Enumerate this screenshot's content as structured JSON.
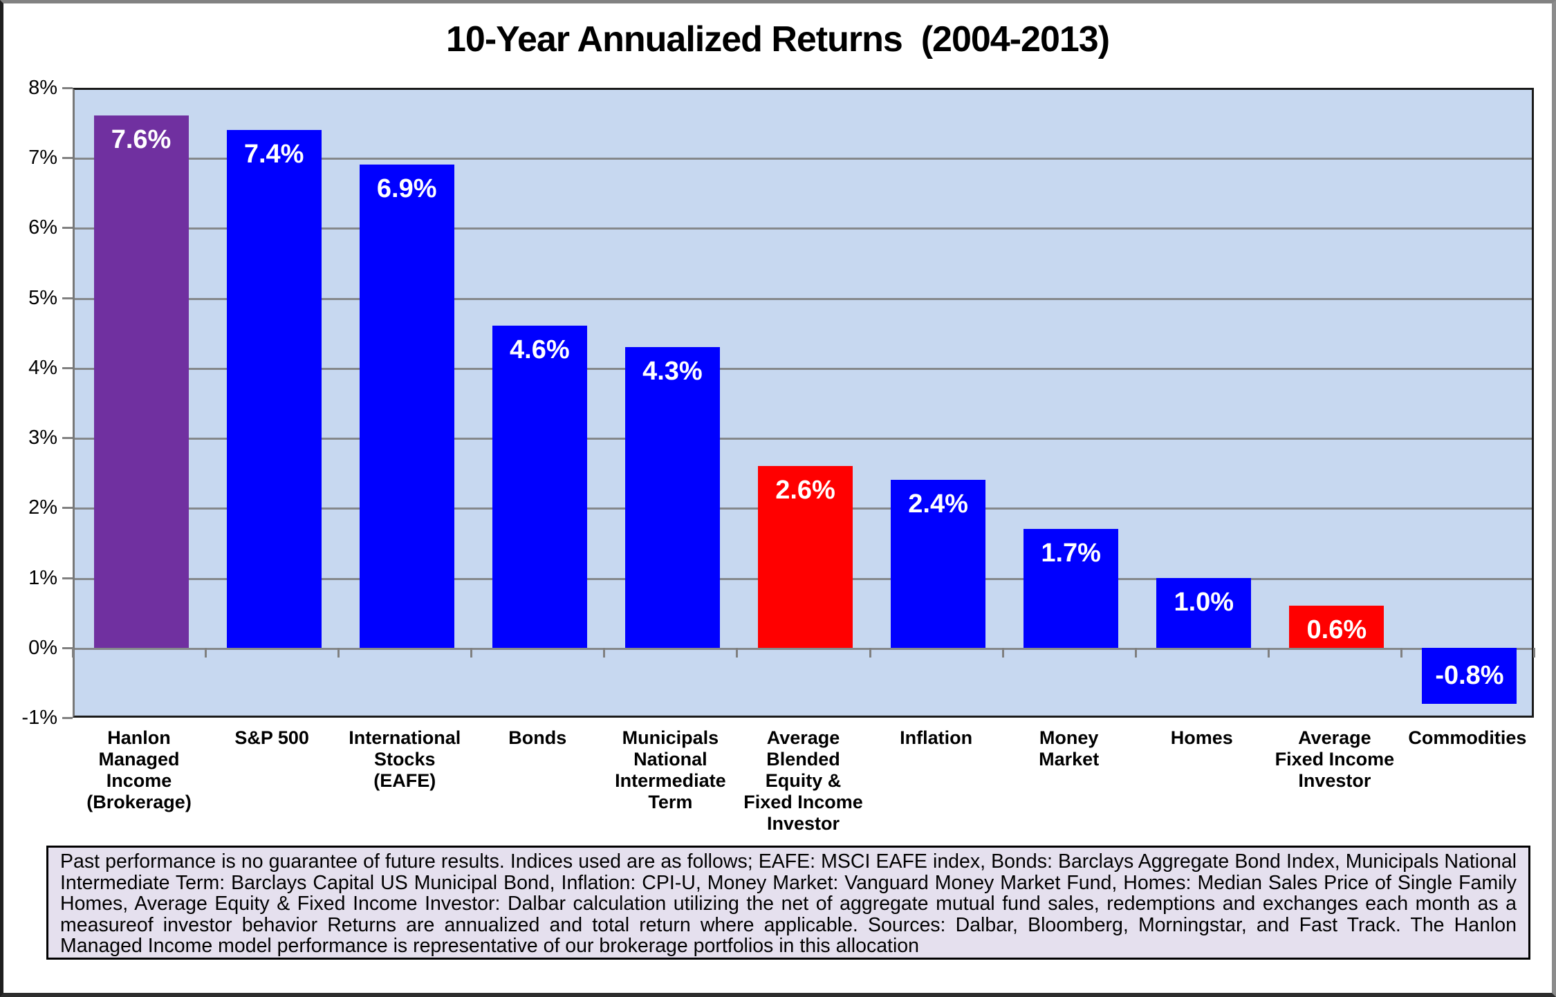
{
  "title": "10-Year Annualized Returns  (2004-2013)",
  "footnote": "Past performance is no guarantee of future results.  Indices used are as follows; EAFE: MSCI EAFE index, Bonds: Barclays Aggregate Bond Index, Municipals National Intermediate Term: Barclays Capital US Municipal Bond, Inflation: CPI-U, Money Market: Vanguard Money Market Fund, Homes: Median Sales Price of Single Family Homes, Average Equity & Fixed Income Investor: Dalbar calculation utilizing the net of aggregate mutual fund sales, redemptions and exchanges each month as a measureof investor behavior Returns are annualized and total return where applicable.  Sources: Dalbar, Bloomberg, Morningstar, and Fast Track. The Hanlon Managed Income model performance is representative of our brokerage portfolios in this allocation",
  "chart_data": {
    "type": "bar",
    "title": "10-Year Annualized Returns  (2004-2013)",
    "xlabel": "",
    "ylabel": "",
    "ylim": [
      -1,
      8
    ],
    "yticks": [
      8,
      7,
      6,
      5,
      4,
      3,
      2,
      1,
      0,
      -1
    ],
    "ytick_suffix": "%",
    "grid": "horizontal",
    "legend": "none",
    "categories": [
      "Hanlon Managed Income (Brokerage)",
      "S&P 500",
      "International Stocks (EAFE)",
      "Bonds",
      "Municipals National Intermediate Term",
      "Average Blended Equity & Fixed Income Investor",
      "Inflation",
      "Money Market",
      "Homes",
      "Average Fixed Income Investor",
      "Commodities"
    ],
    "category_label_lines": [
      [
        "Hanlon",
        "Managed",
        "Income",
        "(Brokerage)"
      ],
      [
        "S&P 500"
      ],
      [
        "International",
        "Stocks",
        "(EAFE)"
      ],
      [
        "Bonds"
      ],
      [
        "Municipals",
        "National",
        "Intermediate",
        "Term"
      ],
      [
        "Average",
        "Blended",
        "Equity &",
        "Fixed Income",
        "Investor"
      ],
      [
        "Inflation"
      ],
      [
        "Money",
        "Market"
      ],
      [
        "Homes"
      ],
      [
        "Average",
        "Fixed Income",
        "Investor"
      ],
      [
        "Commodities"
      ]
    ],
    "values": [
      7.6,
      7.4,
      6.9,
      4.6,
      4.3,
      2.6,
      2.4,
      1.7,
      1.0,
      0.6,
      -0.8
    ],
    "data_labels": [
      "7.6%",
      "7.4%",
      "6.9%",
      "4.6%",
      "4.3%",
      "2.6%",
      "2.4%",
      "1.7%",
      "1.0%",
      "0.6%",
      "-0.8%"
    ],
    "bar_colors": [
      "#7030A0",
      "#0000FF",
      "#0000FF",
      "#0000FF",
      "#0000FF",
      "#FF0000",
      "#0000FF",
      "#0000FF",
      "#0000FF",
      "#FF0000",
      "#0000FF"
    ],
    "colors": {
      "plot_background": "#C7D8F0",
      "gridline": "#85888B",
      "axis": "#808080",
      "plot_border": "#1A1A1A",
      "bar_label_text": "#FFFFFF",
      "purple_bar": "#7030A0",
      "blue_bar": "#0000FF",
      "red_bar": "#FF0000",
      "footnote_background": "#E5E0EE",
      "footnote_border": "#000000"
    }
  }
}
